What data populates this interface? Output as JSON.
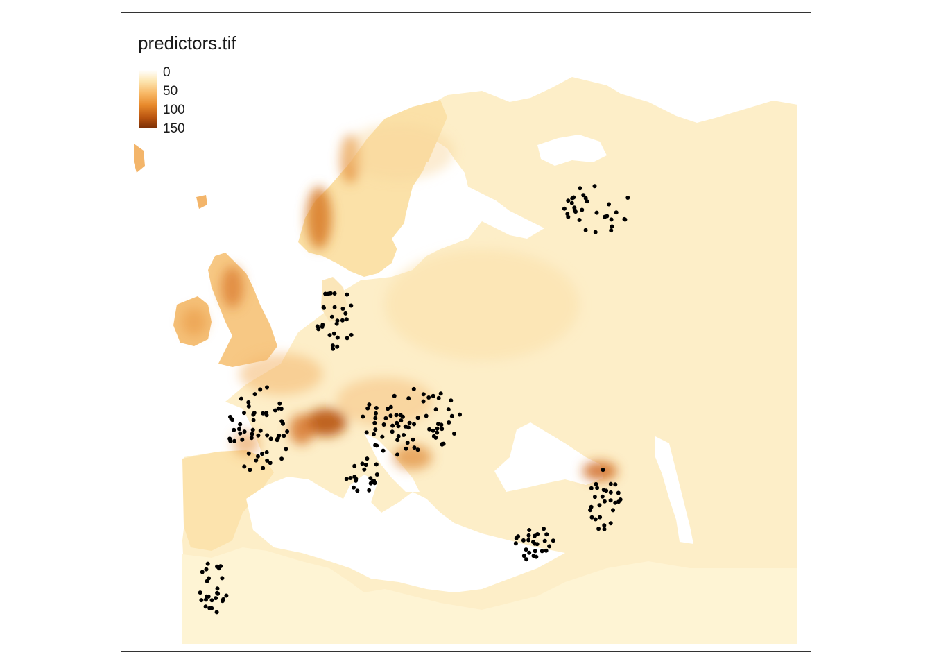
{
  "legend": {
    "title": "predictors.tif",
    "labels": [
      "0",
      "50",
      "100",
      "150"
    ]
  },
  "colors": {
    "ramp": [
      "#ffffff",
      "#fde7b4",
      "#f8b866",
      "#e88a2c",
      "#b8530f",
      "#7a2e06"
    ],
    "water": "#ffffff",
    "land_base": "#fdeec8",
    "points": "#000000"
  }
}
